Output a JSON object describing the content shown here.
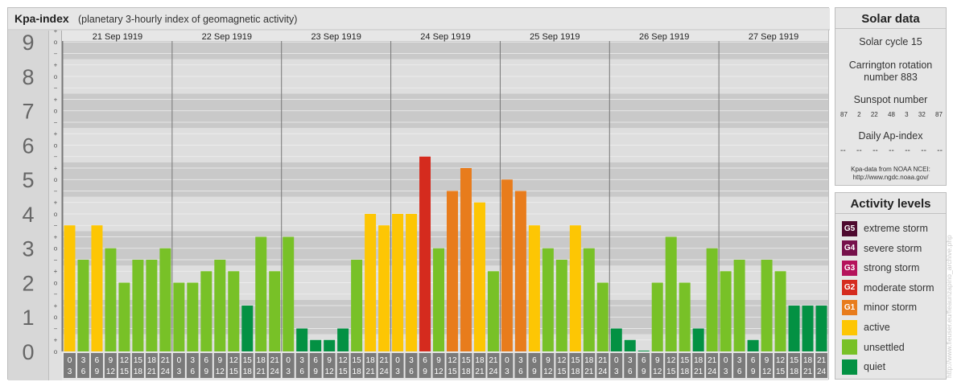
{
  "chart_data": {
    "type": "bar",
    "title": "Kpa-index",
    "subtitle": "(planetary 3-hourly index of geomagnetic activity)",
    "y_ticks": [
      "0",
      "1",
      "2",
      "3",
      "4",
      "5",
      "6",
      "7",
      "8",
      "9"
    ],
    "ylim": [
      0,
      9.333
    ],
    "sub_tick_labels": [
      "o",
      "+",
      "−"
    ],
    "day_labels": [
      "21 Sep 1919",
      "22 Sep 1919",
      "23 Sep 1919",
      "24 Sep 1919",
      "25 Sep 1919",
      "26 Sep 1919",
      "27 Sep 1919"
    ],
    "interval_labels": [
      {
        "start": "0",
        "end": "3"
      },
      {
        "start": "3",
        "end": "6"
      },
      {
        "start": "6",
        "end": "9"
      },
      {
        "start": "9",
        "end": "12"
      },
      {
        "start": "12",
        "end": "15"
      },
      {
        "start": "15",
        "end": "18"
      },
      {
        "start": "18",
        "end": "21"
      },
      {
        "start": "21",
        "end": "24"
      }
    ],
    "values": [
      3.667,
      2.667,
      3.667,
      3,
      2,
      2.667,
      2.667,
      3,
      2,
      2,
      2.333,
      2.667,
      2.333,
      1.333,
      3.333,
      2.333,
      3.333,
      0.667,
      0.333,
      0.333,
      0.667,
      2.667,
      4,
      3.667,
      4,
      4,
      5.667,
      3,
      4.667,
      5.333,
      4.333,
      2.333,
      5,
      4.667,
      3.667,
      3,
      2.667,
      3.667,
      3,
      2,
      0.667,
      0.333,
      0,
      2,
      3.333,
      2,
      0.667,
      3,
      2.333,
      2.667,
      0.333,
      2.667,
      2.333,
      1.333,
      1.333,
      1.333
    ],
    "level_colors": {
      "quiet": "#039143",
      "unsettled": "#78c127",
      "active": "#fdc604",
      "minor_storm": "#e87c1c",
      "moderate_storm": "#d52b1e",
      "strong_storm": "#b5135b",
      "severe_storm": "#76114b",
      "extreme_storm": "#4e0a2f"
    }
  },
  "solar_data": {
    "title": "Solar data",
    "solar_cycle": "Solar cycle 15",
    "carrington_line1": "Carrington rotation",
    "carrington_line2": "number 883",
    "sunspot_title": "Sunspot number",
    "sunspot_numbers": [
      "87",
      "2",
      "22",
      "48",
      "3",
      "32",
      "87"
    ],
    "ap_title": "Daily Ap-index",
    "ap_values": [
      "--",
      "--",
      "--",
      "--",
      "--",
      "--",
      "--"
    ],
    "source_line1": "Kpa-data from NOAA NCEI:",
    "source_line2": "http://www.ngdc.noaa.gov/"
  },
  "activity_levels": {
    "title": "Activity levels",
    "items": [
      {
        "code": "G5",
        "label": "extreme storm",
        "color": "#4e0a2f"
      },
      {
        "code": "G4",
        "label": "severe storm",
        "color": "#76114b"
      },
      {
        "code": "G3",
        "label": "strong storm",
        "color": "#b5135b"
      },
      {
        "code": "G2",
        "label": "moderate storm",
        "color": "#d52b1e"
      },
      {
        "code": "G1",
        "label": "minor storm",
        "color": "#e87c1c"
      },
      {
        "code": "",
        "label": "active",
        "color": "#fdc604"
      },
      {
        "code": "",
        "label": "unsettled",
        "color": "#78c127"
      },
      {
        "code": "",
        "label": "quiet",
        "color": "#039143"
      }
    ]
  },
  "credit": "http://www.fieuser.eu/fieaunzapino_archive.php"
}
